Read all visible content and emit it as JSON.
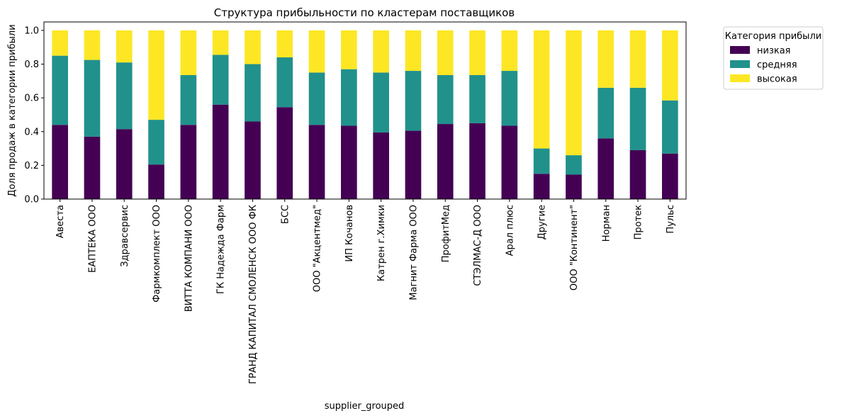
{
  "chart_data": {
    "type": "bar",
    "stacked": true,
    "title": "Структура прибыльности по кластерам поставщиков",
    "xlabel": "supplier_grouped",
    "ylabel": "Доля продаж в категории прибыли",
    "ylim": [
      0,
      1.05
    ],
    "yticks": [
      "0.0",
      "0.2",
      "0.4",
      "0.6",
      "0.8",
      "1.0"
    ],
    "legend": {
      "title": "Категория прибыли",
      "placement": "outside-top-right"
    },
    "categories": [
      "Авеста",
      "ЕАПТЕКА ООО",
      "Здравсервис",
      "Фармкомплект ООО",
      "ВИТТА КОМПАНИ ООО",
      "ГК Надежда Фарм",
      "ГРАНД КАПИТАЛ СМОЛЕНСК ООО ФК",
      "БСС",
      "ООО \"Акцентмед\"",
      "ИП Кочанов",
      "Катрен г.Химки",
      "Магнит Фарма ООО",
      "ПрофитМед",
      "СТЭЛМАС-Д ООО",
      "Арал плюс",
      "Другие",
      "ООО \"Континент\"",
      "Норман",
      "Протек",
      "Пульс"
    ],
    "series": [
      {
        "name": "низкая",
        "color": "#440154",
        "values": [
          0.44,
          0.37,
          0.415,
          0.205,
          0.44,
          0.56,
          0.46,
          0.545,
          0.44,
          0.435,
          0.395,
          0.405,
          0.445,
          0.45,
          0.435,
          0.15,
          0.145,
          0.36,
          0.29,
          0.27
        ]
      },
      {
        "name": "средняя",
        "color": "#21918c",
        "values": [
          0.41,
          0.455,
          0.395,
          0.265,
          0.295,
          0.295,
          0.34,
          0.295,
          0.31,
          0.335,
          0.355,
          0.355,
          0.29,
          0.285,
          0.325,
          0.15,
          0.115,
          0.3,
          0.37,
          0.315
        ]
      },
      {
        "name": "высокая",
        "color": "#fde725",
        "values": [
          0.15,
          0.175,
          0.19,
          0.53,
          0.265,
          0.145,
          0.2,
          0.16,
          0.25,
          0.23,
          0.25,
          0.24,
          0.265,
          0.265,
          0.24,
          0.7,
          0.74,
          0.34,
          0.34,
          0.415
        ]
      }
    ]
  }
}
